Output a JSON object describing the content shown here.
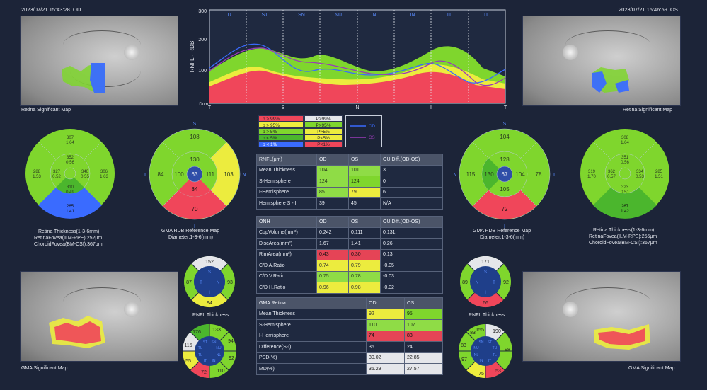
{
  "header": {
    "od_timestamp": "2023/07/21 15:43:28",
    "od_eye": "OD",
    "os_timestamp": "2023/07/21 15:46:59",
    "os_eye": "OS"
  },
  "captions": {
    "retina_sig_map": "Retina Significant Map",
    "gma_sig_map": "GMA Significant Map",
    "retina_thickness_1": "Retina Thickness(1-3-6mm)",
    "retina_fovea_od": "RetinaFovea(ILM-RPE):252μm",
    "choroid_fovea_od": "ChoroidFovea(BM-CSI):367μm",
    "retina_fovea_os": "RetinaFovea(ILM-RPE):255μm",
    "choroid_fovea_os": "ChoroidFovea(BM-CSI):367μm",
    "gma_ref_map": "GMA RDB Reference Map",
    "diameter": "Diameter:1-3-6(mm)",
    "rnfl_thickness": "RNFL Thickness"
  },
  "tsnit_chart": {
    "y_label": "RNFL - RDB",
    "y_ticks": [
      "300",
      "200",
      "100",
      "Dum"
    ],
    "top_sectors": [
      "TU",
      "ST",
      "SN",
      "NU",
      "NL",
      "IN",
      "IT",
      "TL"
    ],
    "bottom_ticks": [
      "T",
      "S",
      "N",
      "I",
      "T"
    ],
    "colors": {
      "red": "#f0465a",
      "yellow": "#ecec3e",
      "green": "#7fd62d",
      "od": "#3a6bff",
      "os": "#9a3bb8"
    }
  },
  "chart_legend": {
    "left_col": [
      "p > 99%",
      "p > 95%",
      "p > 5%",
      "p < 5%",
      "p < 1%"
    ],
    "right_col": [
      "P>99%",
      "P>95%",
      "P>5%",
      "P<5%",
      "P<1%"
    ],
    "lines": [
      "OD",
      "OS"
    ]
  },
  "od_retina_circle": {
    "outer_top": "307",
    "outer_top2": "1.64",
    "outer_left": "288",
    "outer_left2": "1.53",
    "outer_right": "306",
    "outer_right2": "1.63",
    "inner_top": "352",
    "inner_top2": "0.56",
    "inner_left": "327",
    "inner_left2": "0.52",
    "inner_right": "346",
    "inner_right2": "0.55",
    "inner_bottom": "310",
    "inner_bottom2": "0.49",
    "outer_bottom": "265",
    "outer_bottom2": "1.41"
  },
  "os_retina_circle": {
    "outer_top": "308",
    "outer_top2": "1.64",
    "outer_left": "319",
    "outer_left2": "1.70",
    "outer_right": "285",
    "outer_right2": "1.51",
    "inner_top": "351",
    "inner_top2": "0.56",
    "inner_left": "362",
    "inner_left2": "0.57",
    "inner_right": "334",
    "inner_right2": "0.53",
    "inner_bottom": "323",
    "inner_bottom2": "0.51",
    "outer_bottom": "267",
    "outer_bottom2": "1.42"
  },
  "od_gma_circle": {
    "s": "S",
    "i": "I",
    "t": "T",
    "n": "N",
    "outer_top": "108",
    "inner_top": "130",
    "outer_left": "84",
    "inner_left": "100",
    "center": "63",
    "inner_right": "111",
    "outer_right": "103",
    "inner_bottom": "84",
    "outer_bottom": "70"
  },
  "os_gma_circle": {
    "s": "S",
    "i": "I",
    "t": "T",
    "n": "N",
    "outer_top": "104",
    "inner_top": "128",
    "outer_left": "115",
    "inner_left": "130",
    "center": "67",
    "inner_right": "104",
    "outer_right": "78",
    "inner_bottom": "105",
    "outer_bottom": "72"
  },
  "od_rnfl_circle": {
    "top": "152",
    "left": "87",
    "right": "93",
    "bottom": "94",
    "s": "S",
    "t": "T",
    "n": "N",
    "i": "I"
  },
  "os_rnfl_circle": {
    "top": "171",
    "left": "89",
    "right": "92",
    "bottom": "66",
    "s": "S",
    "t": "T",
    "n": "N",
    "i": "I"
  },
  "od_sector_circle": {
    "top": "133",
    "top_left": "176",
    "left": "115",
    "bottom_left": "55",
    "bottom": "72",
    "bottom_right": "110",
    "right": "92",
    "top_right": "94",
    "inner_labels": [
      "ST",
      "SN",
      "TU",
      "NU",
      "TL",
      "NL",
      "IT",
      "IN"
    ]
  },
  "os_sector_circle": {
    "top": "155",
    "top_right": "190",
    "right": "98",
    "bottom_right": "53",
    "bottom": "75",
    "bottom_left": "97",
    "left": "83",
    "top_left": "83",
    "inner_labels": [
      "SN",
      "ST",
      "NU",
      "TU",
      "NL",
      "TL",
      "IN",
      "IT"
    ]
  },
  "rnfl_table": {
    "header": [
      "RNFL(μm)",
      "OD",
      "OS",
      "OU Diff.(OD-OS)"
    ],
    "rows": [
      [
        "Mean Thickness",
        "104",
        "101",
        "3"
      ],
      [
        "S-Hemisphere",
        "124",
        "124",
        "0"
      ],
      [
        "I-Hemisphere",
        "85",
        "79",
        "6"
      ],
      [
        "Hemisphere S - I",
        "39",
        "45",
        "N/A"
      ]
    ]
  },
  "onh_table": {
    "header": [
      "ONH",
      "OD",
      "OS",
      "OU Diff.(OD-OS)"
    ],
    "rows": [
      [
        "CupVolume(mm³)",
        "0.242",
        "0.111",
        "0.131"
      ],
      [
        "DiscArea(mm²)",
        "1.67",
        "1.41",
        "0.26"
      ],
      [
        "RimArea(mm²)",
        "0.43",
        "0.30",
        "0.13"
      ],
      [
        "C/D A.Ratio",
        "0.74",
        "0.79",
        "-0.05"
      ],
      [
        "C/D V.Ratio",
        "0.75",
        "0.78",
        "-0.03"
      ],
      [
        "C/D H.Ratio",
        "0.96",
        "0.98",
        "-0.02"
      ]
    ]
  },
  "gma_table": {
    "header": [
      "GMA Retina",
      "OD",
      "OS"
    ],
    "rows": [
      [
        "Mean Thickness",
        "92",
        "95"
      ],
      [
        "S-Hemisphere",
        "110",
        "107"
      ],
      [
        "I-Hemisphere",
        "74",
        "83"
      ],
      [
        "Difference(S-I)",
        "36",
        "24"
      ],
      [
        "PSD(%)",
        "30.02",
        "22.85"
      ],
      [
        "MD(%)",
        "35.29",
        "27.57"
      ]
    ]
  }
}
